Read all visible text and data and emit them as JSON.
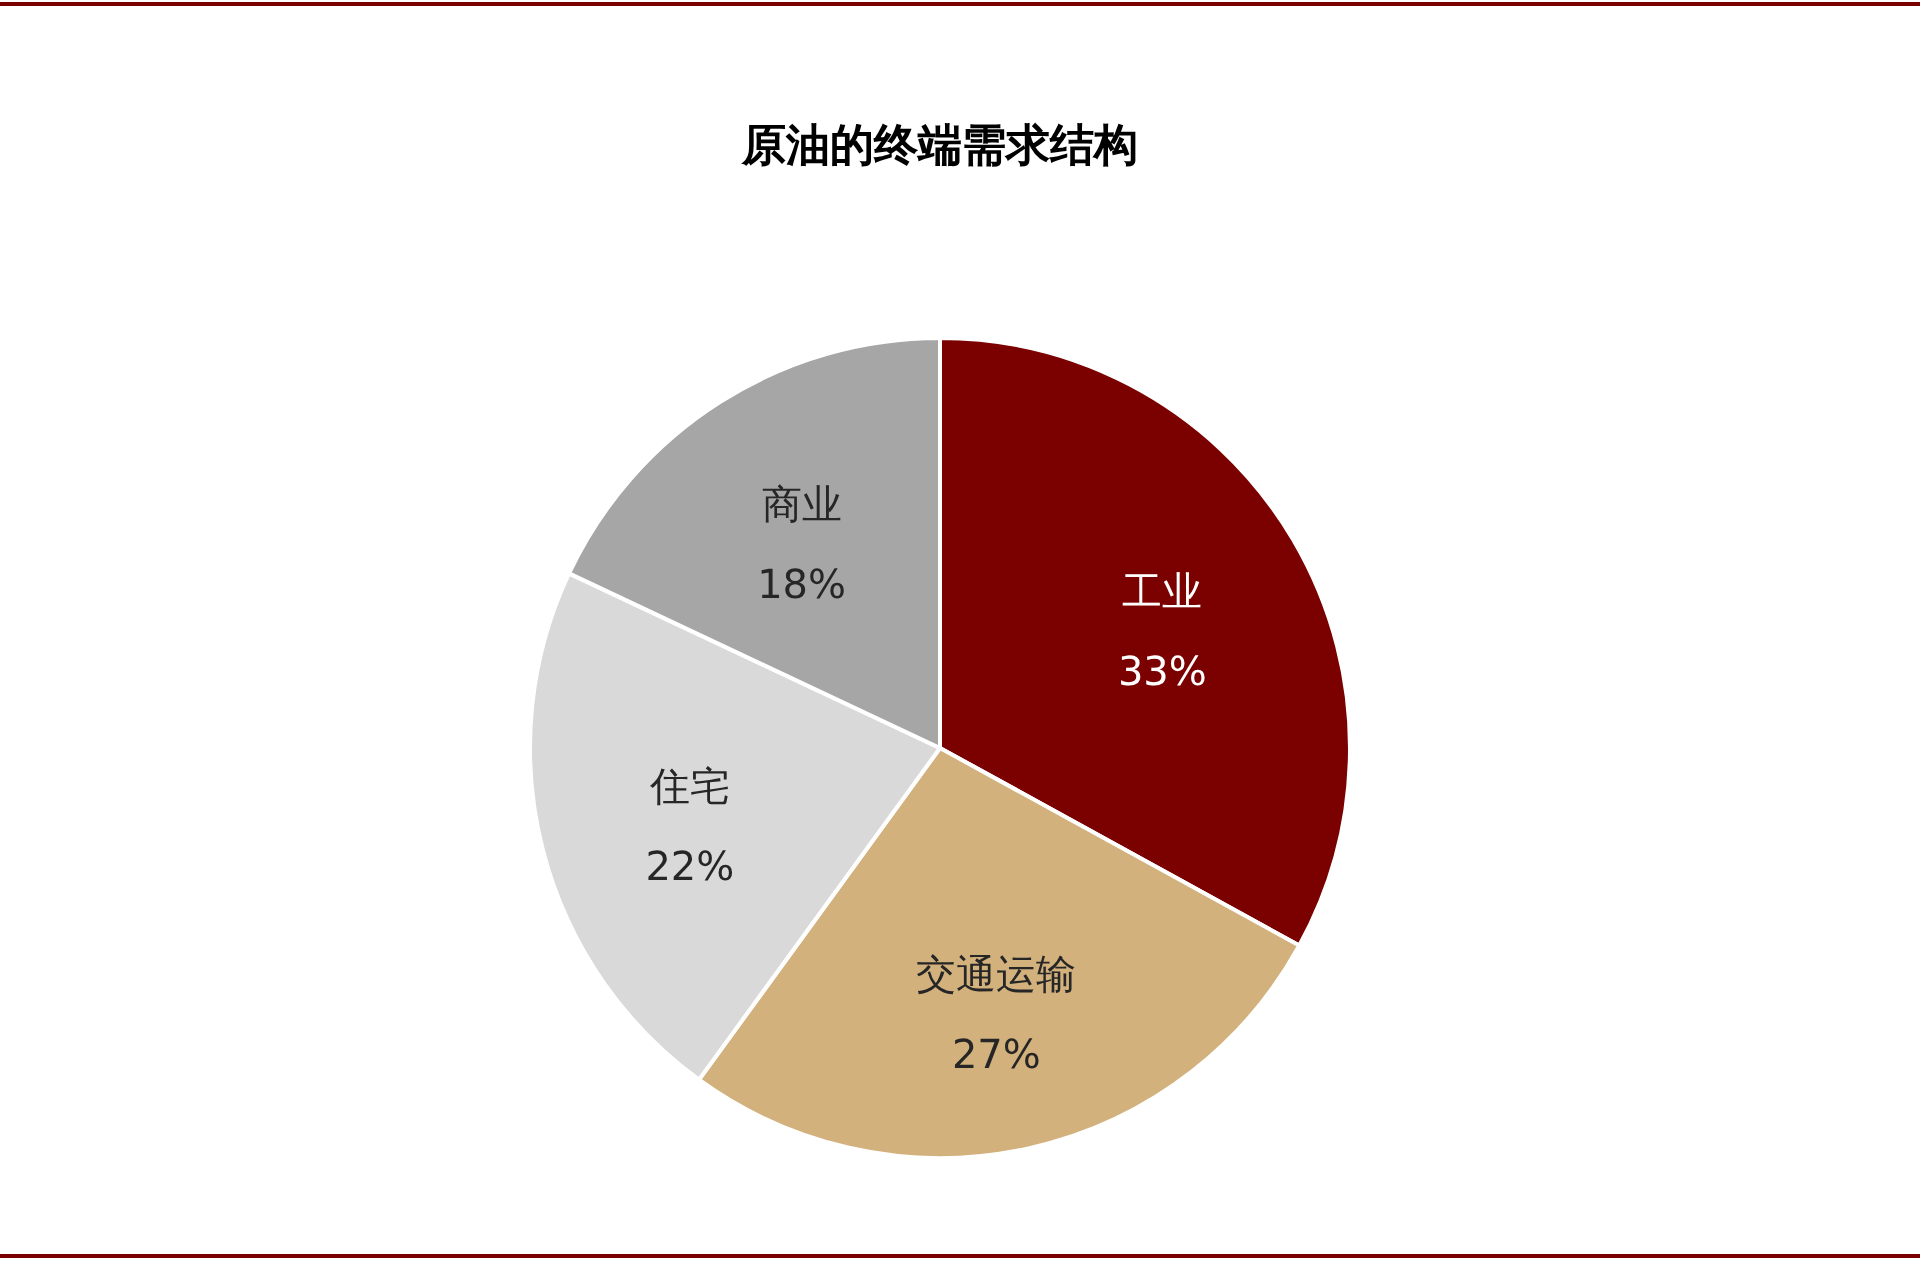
{
  "chart_data": {
    "type": "pie",
    "title": "原油的终端需求结构",
    "categories": [
      "工业",
      "交通运输",
      "住宅",
      "商业"
    ],
    "values": [
      33,
      27,
      22,
      18
    ],
    "colors": [
      "#7b0000",
      "#d3b17d",
      "#d9d9d9",
      "#a6a6a6"
    ],
    "value_labels": [
      "33%",
      "27%",
      "22%",
      "18%"
    ]
  }
}
